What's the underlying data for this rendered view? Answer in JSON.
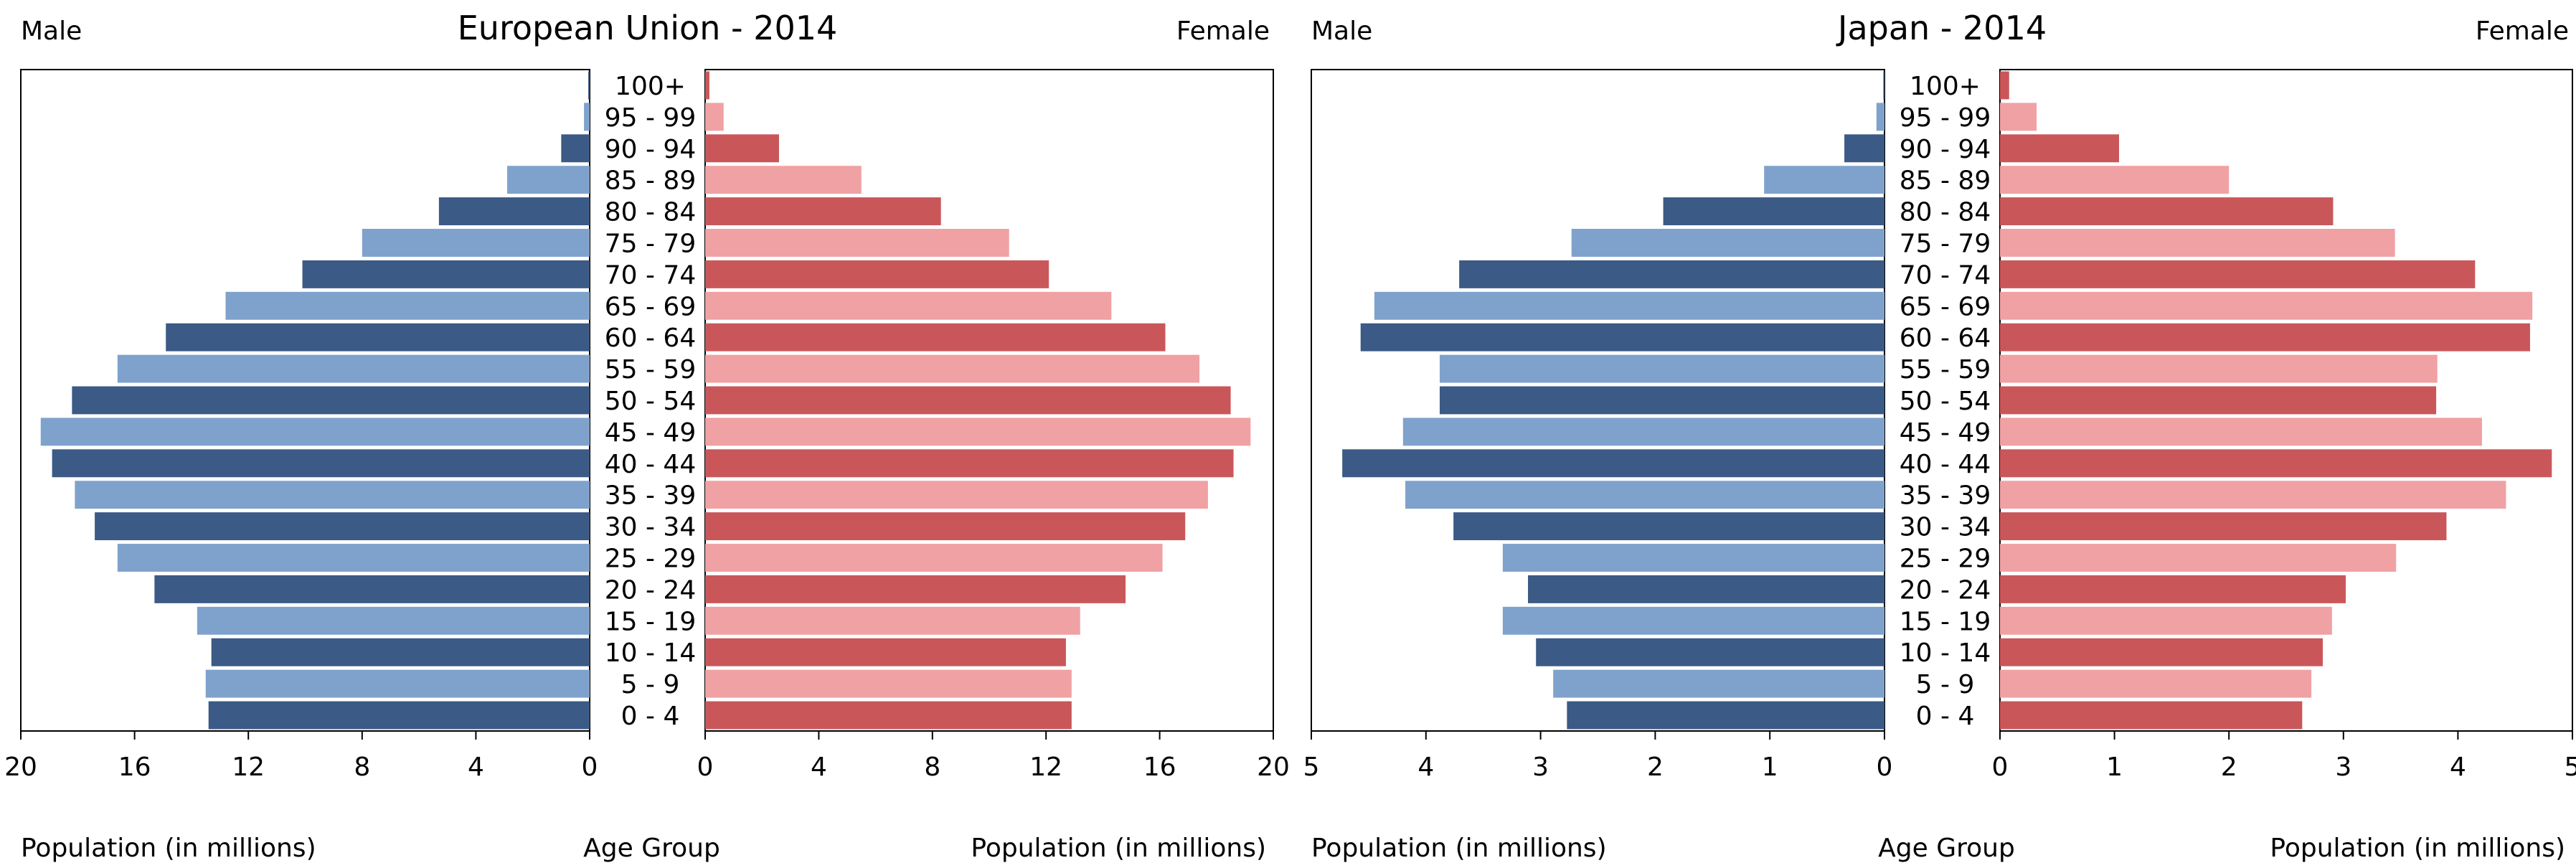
{
  "chart_data": [
    {
      "type": "bar",
      "title": "European Union - 2014",
      "left_label": "Male",
      "right_label": "Female",
      "center_label": "Age Group",
      "xlabel_left": "Population (in millions)",
      "xlabel_right": "Population (in millions)",
      "xlim": [
        0,
        20
      ],
      "xticks": [
        "20",
        "16",
        "12",
        "8",
        "4",
        "0"
      ],
      "xticks_right": [
        "0",
        "4",
        "8",
        "12",
        "16",
        "20"
      ],
      "categories": [
        "100+",
        "95 - 99",
        "90 - 94",
        "85 - 89",
        "80 - 84",
        "75 - 79",
        "70 - 74",
        "65 - 69",
        "60 - 64",
        "55 - 59",
        "50 - 54",
        "45 - 49",
        "40 - 44",
        "35 - 39",
        "30 - 34",
        "25 - 29",
        "20 - 24",
        "15 - 19",
        "10 - 14",
        "5 - 9",
        "0 - 4"
      ],
      "series": [
        {
          "name": "Male",
          "values": [
            0.05,
            0.2,
            1.0,
            2.9,
            5.3,
            8.0,
            10.1,
            12.8,
            14.9,
            16.6,
            18.2,
            19.3,
            18.9,
            18.1,
            17.4,
            16.6,
            15.3,
            13.8,
            13.3,
            13.5,
            13.4
          ]
        },
        {
          "name": "Female",
          "values": [
            0.15,
            0.65,
            2.6,
            5.5,
            8.3,
            10.7,
            12.1,
            14.3,
            16.2,
            17.4,
            18.5,
            19.2,
            18.6,
            17.7,
            16.9,
            16.1,
            14.8,
            13.2,
            12.7,
            12.9,
            12.9
          ]
        }
      ],
      "colors": {
        "dark_blue": "#3b5a85",
        "light_blue": "#7fa2cc",
        "dark_red": "#c9575a",
        "light_red": "#f0a1a3"
      }
    },
    {
      "type": "bar",
      "title": "Japan - 2014",
      "left_label": "Male",
      "right_label": "Female",
      "center_label": "Age Group",
      "xlabel_left": "Population (in millions)",
      "xlabel_right": "Population (in millions)",
      "xlim": [
        0,
        5
      ],
      "xticks": [
        "5",
        "4",
        "3",
        "2",
        "1",
        "0"
      ],
      "xticks_right": [
        "0",
        "1",
        "2",
        "3",
        "4",
        "5"
      ],
      "categories": [
        "100+",
        "95 - 99",
        "90 - 94",
        "85 - 89",
        "80 - 84",
        "75 - 79",
        "70 - 74",
        "65 - 69",
        "60 - 64",
        "55 - 59",
        "50 - 54",
        "45 - 49",
        "40 - 44",
        "35 - 39",
        "30 - 34",
        "25 - 29",
        "20 - 24",
        "15 - 19",
        "10 - 14",
        "5 - 9",
        "0 - 4"
      ],
      "series": [
        {
          "name": "Male",
          "values": [
            0.01,
            0.07,
            0.35,
            1.05,
            1.93,
            2.73,
            3.71,
            4.45,
            4.57,
            3.88,
            3.88,
            4.2,
            4.73,
            4.18,
            3.76,
            3.33,
            3.11,
            3.33,
            3.04,
            2.89,
            2.77
          ]
        },
        {
          "name": "Female",
          "values": [
            0.08,
            0.32,
            1.04,
            2.0,
            2.91,
            3.45,
            4.15,
            4.65,
            4.63,
            3.82,
            3.81,
            4.21,
            4.82,
            4.42,
            3.9,
            3.46,
            3.02,
            2.9,
            2.82,
            2.72,
            2.64
          ]
        }
      ],
      "colors": {
        "dark_blue": "#3b5a85",
        "light_blue": "#7fa2cc",
        "dark_red": "#c9575a",
        "light_red": "#f0a1a3"
      }
    }
  ]
}
